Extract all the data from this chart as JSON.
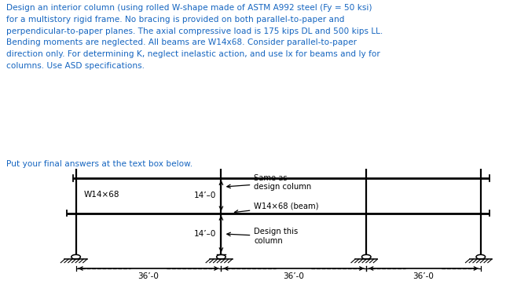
{
  "title_text": "Design an interior column (using rolled W-shape made of ASTM A992 steel (Fy = 50 ksi)\nfor a multistory rigid frame. No bracing is provided on both parallel-to-paper and\nperpendicular-to-paper planes. The axial compressive load is 175 kips DL and 500 kips LL.\nBending moments are neglected. All beams are W14x68. Consider parallel-to-paper\ndirection only. For determining K, neglect inelastic action, and use Ix for beams and Iy for\ncolumns. Use ASD specifications.",
  "subtitle_text": "Put your final answers at the text box below.",
  "text_color": "#1565C0",
  "subtitle_color": "#1565C0",
  "diagram_color": "#000000",
  "bg_color": "#ffffff",
  "label_14_top": "14’–0",
  "label_14_bot": "14’–0",
  "label_W14x68_beam": "W14×68 (beam)",
  "label_W14x68_col": "W14×68",
  "label_same_as": "Same as\ndesign column",
  "label_design_this": "Design this\ncolumn",
  "dim_labels": [
    "36’-0",
    "36’-0",
    "36’-0"
  ]
}
